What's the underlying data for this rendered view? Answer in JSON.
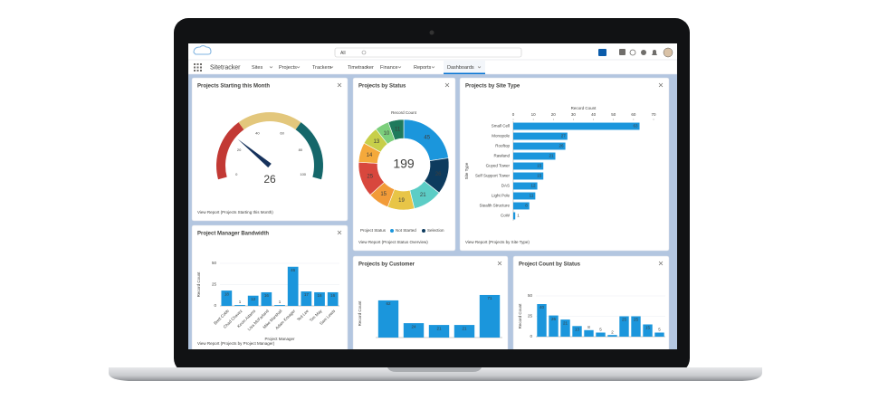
{
  "header": {
    "search_scope": "All"
  },
  "nav": {
    "app": "Sitetracker",
    "items": [
      "Sites",
      "Projects",
      "Trackers",
      "Timetracker",
      "Finance",
      "Reports",
      "Dashboards"
    ]
  },
  "widgets": [
    {
      "type": "gauge",
      "title": "Projects Starting this Month",
      "value": 26,
      "range": [
        0,
        100
      ],
      "ticks": [
        0,
        20,
        40,
        60,
        80,
        100
      ],
      "bands": [
        {
          "from": 0,
          "to": 33,
          "color": "#c23934"
        },
        {
          "from": 33,
          "to": 67,
          "color": "#e3c77c"
        },
        {
          "from": 67,
          "to": 100,
          "color": "#15676a"
        }
      ],
      "value_color": "#c23934",
      "link": "View Report (Projects Starting this Month)"
    },
    {
      "type": "donut",
      "title": "Projects by Status",
      "subtitle": "Record Count",
      "total": 199,
      "values": [
        45,
        26,
        21,
        19,
        15,
        25,
        14,
        13,
        10,
        11
      ],
      "colors": [
        "#1b96dc",
        "#0d3b5e",
        "#5ccdc6",
        "#e8c547",
        "#f29b38",
        "#d8473d",
        "#f4a93b",
        "#c7cf4a",
        "#7ccf7c",
        "#1f7a5c"
      ],
      "legend_title": "Project Status",
      "legend": [
        {
          "name": "Not Started",
          "color": "#1b96dc"
        },
        {
          "name": "Selection",
          "color": "#0d3b5e"
        }
      ],
      "link": "View Report (Project Status Overview)"
    },
    {
      "type": "hbar",
      "title": "Projects by Site Type",
      "x_label": "Record Count",
      "y_label": "Site Type",
      "categories": [
        "Small Cell",
        "Monopole",
        "Rooftop",
        "Rawland",
        "Guyed Tower",
        "Self Support Tower",
        "DAS",
        "Light Pole",
        "Stealth Structure",
        "CoW"
      ],
      "values": [
        63,
        27,
        26,
        21,
        15,
        15,
        12,
        11,
        8,
        1
      ],
      "color": "#1b96dc",
      "xlim": [
        0,
        70
      ],
      "xticks": [
        0,
        10,
        20,
        30,
        40,
        50,
        60,
        70
      ],
      "link": "View Report (Projects by Site Type)"
    },
    {
      "type": "bar",
      "title": "Project Manager Bandwidth",
      "x_label": "Project Manager",
      "y_label": "Record Count",
      "categories": [
        "Brett Cobb",
        "Chad Chavez",
        "Kevin Adams",
        "Lisa McFarland",
        "Mike Marshall",
        "Adam Kreager",
        "Ted Lee",
        "Tim May",
        "Sam Lewis"
      ],
      "values": [
        18,
        1,
        12,
        16,
        1,
        46,
        17,
        16,
        16
      ],
      "color": "#1b96dc",
      "ylim": [
        0,
        50
      ],
      "yticks": [
        0,
        25,
        50
      ],
      "link": "View Report (Projects by Project Manager)"
    },
    {
      "type": "bar",
      "title": "Projects by Customer",
      "y_label": "Record Count",
      "categories": [
        null,
        null,
        null,
        null,
        null
      ],
      "values": [
        62,
        24,
        21,
        21,
        71
      ],
      "color": "#1b96dc",
      "ylim": [
        0,
        80
      ]
    },
    {
      "type": "bar",
      "title": "Project Count by Status",
      "y_label": "Record Count",
      "categories": [
        null,
        null,
        null,
        null,
        null,
        null,
        null,
        null,
        null,
        null,
        null
      ],
      "values": [
        40,
        26,
        21,
        13,
        8,
        5,
        2,
        25,
        25,
        15,
        5
      ],
      "color": "#1b96dc",
      "ylim": [
        0,
        50
      ],
      "yticks": [
        0,
        25,
        50
      ]
    }
  ]
}
